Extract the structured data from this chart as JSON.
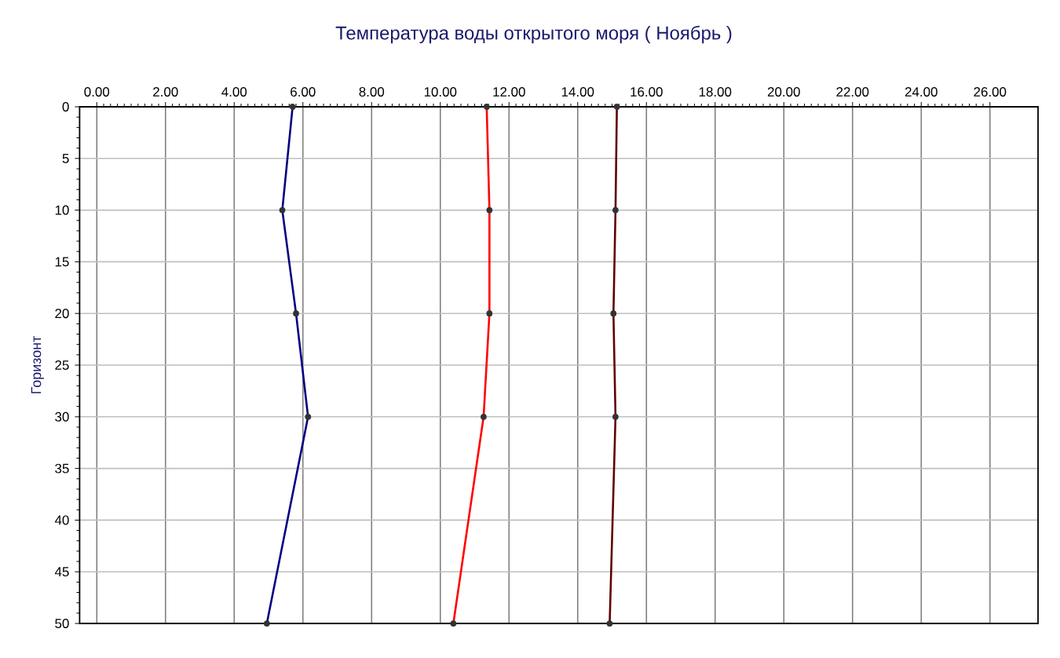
{
  "chart_data": {
    "type": "line",
    "title": "Температура воды открытого моря     ( Ноябрь )",
    "ylabel": "Горизонт",
    "xlim": [
      -0.5,
      27.4
    ],
    "ylim": [
      50,
      0
    ],
    "xticks": [
      {
        "value": 0,
        "label": "0.00"
      },
      {
        "value": 2,
        "label": "2.00"
      },
      {
        "value": 4,
        "label": "4.00"
      },
      {
        "value": 6,
        "label": "6.00"
      },
      {
        "value": 8,
        "label": "8.00"
      },
      {
        "value": 10,
        "label": "10.00"
      },
      {
        "value": 12,
        "label": "12.00"
      },
      {
        "value": 14,
        "label": "14.00"
      },
      {
        "value": 16,
        "label": "16.00"
      },
      {
        "value": 18,
        "label": "18.00"
      },
      {
        "value": 20,
        "label": "20.00"
      },
      {
        "value": 22,
        "label": "22.00"
      },
      {
        "value": 24,
        "label": "24.00"
      },
      {
        "value": 26,
        "label": "26.00"
      }
    ],
    "yticks": [
      0,
      5,
      10,
      15,
      20,
      25,
      30,
      35,
      40,
      45,
      50
    ],
    "grid": true,
    "marker": "circle",
    "series": [
      {
        "color": "#000080",
        "x": [
          5.7,
          5.4,
          5.8,
          6.15,
          4.95
        ],
        "values": [
          0,
          10,
          20,
          30,
          50
        ]
      },
      {
        "color": "#ff0000",
        "x": [
          11.35,
          11.43,
          11.43,
          11.26,
          10.38
        ],
        "values": [
          0,
          10,
          20,
          30,
          50
        ]
      },
      {
        "color": "#600000",
        "x": [
          15.14,
          15.1,
          15.04,
          15.1,
          14.93
        ],
        "values": [
          0,
          10,
          20,
          30,
          50
        ]
      }
    ]
  }
}
